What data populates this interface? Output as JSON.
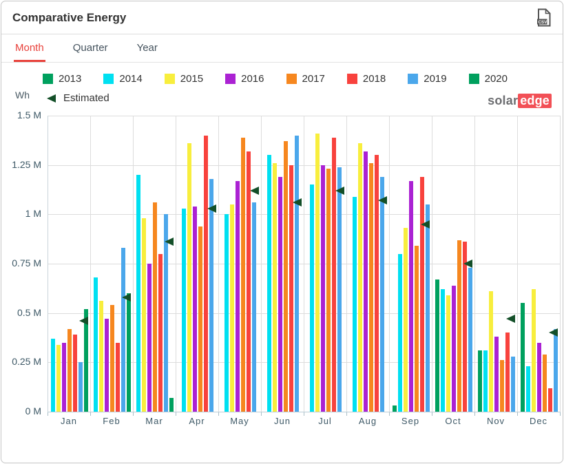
{
  "header": {
    "title": "Comparative Energy",
    "csv_label": "CSV"
  },
  "tabs": [
    {
      "label": "Month",
      "active": true
    },
    {
      "label": "Quarter",
      "active": false
    },
    {
      "label": "Year",
      "active": false
    }
  ],
  "branding": {
    "logo_solar": "solar",
    "logo_edge": "edge"
  },
  "colors": {
    "tab_active": "#e8403a",
    "estimated_marker": "#134f28",
    "gridline": "#dcdcdc",
    "axis_text": "#3d5866"
  },
  "chart_data": {
    "type": "bar",
    "title": "Comparative Energy",
    "unit_label": "Wh",
    "value_unit": "M Wh",
    "grid": true,
    "legend_position": "top",
    "categories": [
      "Jan",
      "Feb",
      "Mar",
      "Apr",
      "May",
      "Jun",
      "Jul",
      "Aug",
      "Sep",
      "Oct",
      "Nov",
      "Dec"
    ],
    "y_ticks": [
      "1.5 M",
      "1.25 M",
      "1 M",
      "0.75 M",
      "0.5 M",
      "0.25 M",
      "0 M"
    ],
    "ylim": [
      0,
      1.5
    ],
    "series": [
      {
        "name": "2013",
        "color": "#00a05e",
        "values": [
          null,
          null,
          null,
          null,
          null,
          null,
          null,
          null,
          0.03,
          0.67,
          0.31,
          0.55
        ]
      },
      {
        "name": "2014",
        "color": "#00e0f1",
        "values": [
          0.37,
          0.68,
          1.2,
          1.03,
          1.0,
          1.3,
          1.15,
          1.09,
          0.8,
          0.62,
          0.31,
          0.23
        ]
      },
      {
        "name": "2015",
        "color": "#f8ee3d",
        "values": [
          0.34,
          0.56,
          0.98,
          1.36,
          1.05,
          1.26,
          1.41,
          1.36,
          0.93,
          0.59,
          0.61,
          0.62
        ]
      },
      {
        "name": "2016",
        "color": "#ab22d3",
        "values": [
          0.35,
          0.47,
          0.75,
          1.04,
          1.17,
          1.19,
          1.25,
          1.32,
          1.17,
          0.64,
          0.38,
          0.35
        ]
      },
      {
        "name": "2017",
        "color": "#f6871f",
        "values": [
          0.42,
          0.54,
          1.06,
          0.94,
          1.39,
          1.37,
          1.23,
          1.26,
          0.84,
          0.87,
          0.26,
          0.29
        ]
      },
      {
        "name": "2018",
        "color": "#f8423d",
        "values": [
          0.39,
          0.35,
          0.8,
          1.4,
          1.32,
          1.25,
          1.39,
          1.3,
          1.19,
          0.86,
          0.4,
          0.12
        ]
      },
      {
        "name": "2019",
        "color": "#4ba7eb",
        "values": [
          0.25,
          0.83,
          1.0,
          1.18,
          1.06,
          1.4,
          1.24,
          1.19,
          1.05,
          0.73,
          0.28,
          0.42
        ]
      },
      {
        "name": "2020",
        "color": "#00a05e",
        "values": [
          0.52,
          0.6,
          0.07,
          null,
          null,
          null,
          null,
          null,
          null,
          null,
          null,
          null
        ]
      }
    ],
    "estimated": {
      "name": "Estimated",
      "color": "#134f28",
      "values": [
        0.46,
        0.58,
        0.86,
        1.03,
        1.12,
        1.06,
        1.12,
        1.07,
        0.95,
        0.75,
        0.47,
        0.4
      ]
    }
  }
}
